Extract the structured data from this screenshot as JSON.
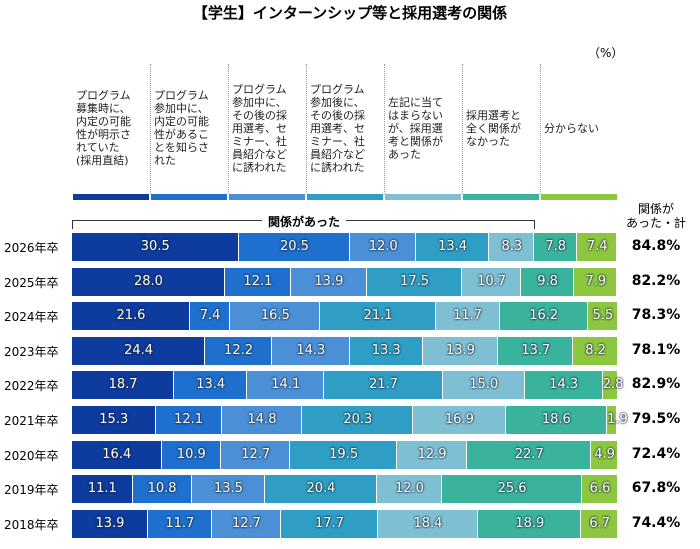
{
  "chart_data": {
    "type": "stacked_bar",
    "orientation": "horizontal",
    "title": "【学生】インターンシップ等と採用選考の関係",
    "unit": "（%）",
    "group_label": "関係があった",
    "xlim": [
      0,
      100
    ],
    "categories": [
      "2026年卒",
      "2025年卒",
      "2024年卒",
      "2023年卒",
      "2022年卒",
      "2021年卒",
      "2020年卒",
      "2019年卒",
      "2018年卒"
    ],
    "series": [
      {
        "name": "プログラム\n募集時に、\n内定の可能\n性が明示さ\nれていた\n(採用直結)",
        "color": "#0d3b9e",
        "values": [
          30.5,
          28.0,
          21.6,
          24.4,
          18.7,
          15.3,
          16.4,
          11.1,
          13.9
        ],
        "value_labels": [
          "30.5",
          "28.0",
          "21.6",
          "24.4",
          "18.7",
          "15.3",
          "16.4",
          "11.1",
          "13.9"
        ]
      },
      {
        "name": "プログラム\n参加中に、\n内定の可能\n性があるこ\nとを知らさ\nれた",
        "color": "#1f6fcf",
        "values": [
          20.5,
          12.1,
          7.4,
          12.2,
          13.4,
          12.1,
          10.9,
          10.8,
          11.7
        ],
        "value_labels": [
          "20.5",
          "12.1",
          "7.4",
          "12.2",
          "13.4",
          "12.1",
          "10.9",
          "10.8",
          "11.7"
        ]
      },
      {
        "name": "プログラム\n参加中に、\nその後の採\n用選考、セ\nミナー、社\n員紹介など\nに誘われた",
        "color": "#4b8fd6",
        "values": [
          12.0,
          13.9,
          16.5,
          14.3,
          14.1,
          14.8,
          12.7,
          13.5,
          12.7
        ],
        "value_labels": [
          "12.0",
          "13.9",
          "16.5",
          "14.3",
          "14.1",
          "14.8",
          "12.7",
          "13.5",
          "12.7"
        ]
      },
      {
        "name": "プログラム\n参加後に、\nその後の採\n用選考、セ\nミナー、社\n員紹介など\nに誘われた",
        "color": "#2e9ec4",
        "values": [
          13.4,
          17.5,
          21.1,
          13.3,
          21.7,
          20.3,
          19.5,
          20.4,
          17.7
        ],
        "value_labels": [
          "13.4",
          "17.5",
          "21.1",
          "13.3",
          "21.7",
          "20.3",
          "19.5",
          "20.4",
          "17.7"
        ]
      },
      {
        "name": "左記に当て\nはまらない\nが、採用選\n考と関係が\nあった",
        "color": "#7fbfd3",
        "values": [
          8.3,
          10.7,
          11.7,
          13.9,
          15.0,
          16.9,
          12.9,
          12.0,
          18.4
        ],
        "value_labels": [
          "8.3",
          "10.7",
          "11.7",
          "13.9",
          "15.0",
          "16.9",
          "12.9",
          "12.0",
          "18.4"
        ]
      },
      {
        "name": "採用選考と\n全く関係が\nなかった",
        "color": "#3ab39d",
        "values": [
          7.8,
          9.8,
          16.2,
          13.7,
          14.3,
          18.6,
          22.7,
          25.6,
          18.9
        ],
        "value_labels": [
          "7.8",
          "9.8",
          "16.2",
          "13.7",
          "14.3",
          "18.6",
          "22.7",
          "25.6",
          "18.9"
        ]
      },
      {
        "name": "分からない",
        "color": "#8dc63f",
        "values": [
          7.4,
          7.9,
          5.5,
          8.2,
          2.8,
          1.9,
          4.9,
          6.6,
          6.7
        ],
        "value_labels": [
          "7.4",
          "7.9",
          "5.5",
          "8.2",
          "2.8",
          "1.9",
          "4.9",
          "6.6",
          "6.7"
        ]
      }
    ],
    "totals": {
      "title": "関係が\nあった・計",
      "values": [
        84.8,
        82.2,
        78.3,
        78.1,
        82.9,
        79.5,
        72.4,
        67.8,
        74.4
      ],
      "value_labels": [
        "84.8%",
        "82.2%",
        "78.3%",
        "78.1%",
        "82.9%",
        "79.5%",
        "72.4%",
        "67.8%",
        "74.4%"
      ]
    }
  }
}
